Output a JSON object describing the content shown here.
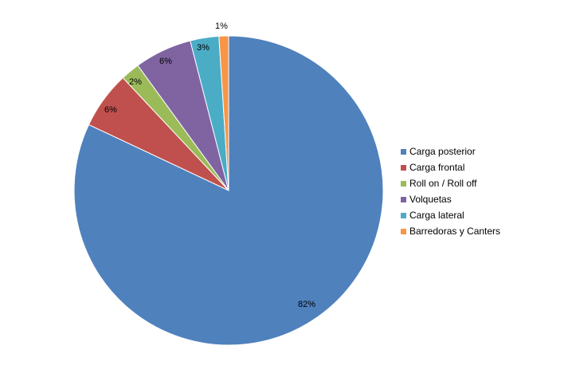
{
  "chart_data": {
    "type": "pie",
    "slices": [
      {
        "label": "Carga posterior",
        "value": 82,
        "display": "82%",
        "color": "#4F81BD"
      },
      {
        "label": "Carga frontal",
        "value": 6,
        "display": "6%",
        "color": "#C0504D"
      },
      {
        "label": "Roll on / Roll off",
        "value": 2,
        "display": "2%",
        "color": "#9BBB59"
      },
      {
        "label": "Volquetas",
        "value": 6,
        "display": "6%",
        "color": "#8064A2"
      },
      {
        "label": "Carga lateral",
        "value": 3,
        "display": "3%",
        "color": "#4BACC6"
      },
      {
        "label": "Barredoras y Canters",
        "value": 1,
        "display": "1%",
        "color": "#F79646"
      }
    ],
    "legend_position": "right"
  }
}
